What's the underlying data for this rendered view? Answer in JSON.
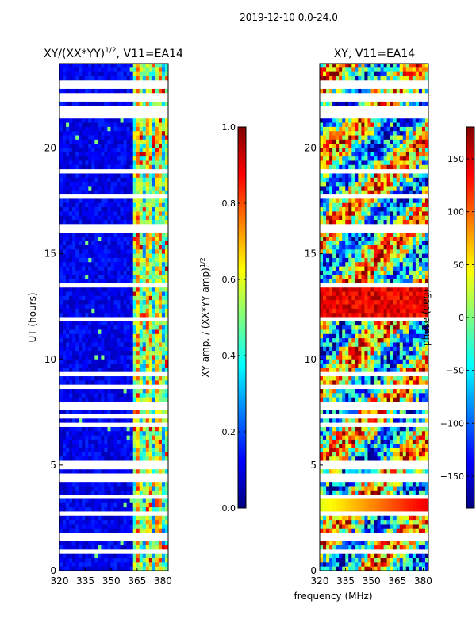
{
  "chart_data": {
    "suptitle": "2019-12-10 0.0-24.0",
    "shared_xlabel": "frequency (MHz)",
    "panels": [
      {
        "type": "heatmap",
        "title": "XY/(XX*YY)^1/2, V11=EA14",
        "title_main": "XY/(XX*YY)",
        "title_exp": "1/2",
        "title_rest": ", V11=EA14",
        "xlabel": "frequency (MHz)",
        "ylabel": "UT (hours)",
        "xlim": [
          320,
          383
        ],
        "ylim": [
          0,
          24
        ],
        "xticks": [
          320,
          335,
          350,
          365,
          380
        ],
        "yticks": [
          0,
          5,
          10,
          15,
          20
        ],
        "colorbar": {
          "label": "XY amp. / (XX*YY amp)^1/2",
          "label_main": "XY amp. / (XX*YY amp)",
          "label_exp": "1/2",
          "range": [
            0.0,
            1.0
          ],
          "ticks": [
            "0.0",
            "0.2",
            "0.4",
            "0.6",
            "0.8",
            "1.0"
          ],
          "tick_values": [
            0.0,
            0.2,
            0.4,
            0.6,
            0.8,
            1.0
          ]
        },
        "gaps_ut_hours": [
          0.9,
          1.6,
          2.7,
          3.5,
          4.4,
          5.0,
          6.9,
          7.3,
          7.8,
          8.7,
          9.3,
          11.9,
          13.5,
          16.2,
          17.7,
          18.9,
          21.5,
          21.8,
          22.4,
          23.0
        ]
      },
      {
        "type": "heatmap",
        "title": "XY, V11=EA14",
        "xlabel": "frequency (MHz)",
        "ylabel": "",
        "xlim": [
          320,
          383
        ],
        "ylim": [
          0,
          24
        ],
        "xticks": [
          320,
          335,
          350,
          365,
          380
        ],
        "yticks": [
          0,
          5,
          10,
          15,
          20
        ],
        "colorbar": {
          "label": "phase (deg)",
          "range": [
            -180,
            180
          ],
          "ticks": [
            "−150",
            "−100",
            "−50",
            "0",
            "50",
            "100",
            "150"
          ],
          "tick_values": [
            -150,
            -100,
            -50,
            0,
            50,
            100,
            150
          ]
        },
        "gaps_ut_hours": [
          0.9,
          1.6,
          2.7,
          3.5,
          4.4,
          5.0,
          6.9,
          7.3,
          7.8,
          8.7,
          9.3,
          11.9,
          13.5,
          16.2,
          17.7,
          18.9,
          21.5,
          21.8,
          22.4,
          23.0
        ]
      }
    ]
  },
  "colormap": {
    "name": "jet",
    "stops": [
      "#00007f",
      "#0000ff",
      "#007fff",
      "#00ffff",
      "#7fff7f",
      "#ffff00",
      "#ff7f00",
      "#ff0000",
      "#7f0000"
    ]
  }
}
